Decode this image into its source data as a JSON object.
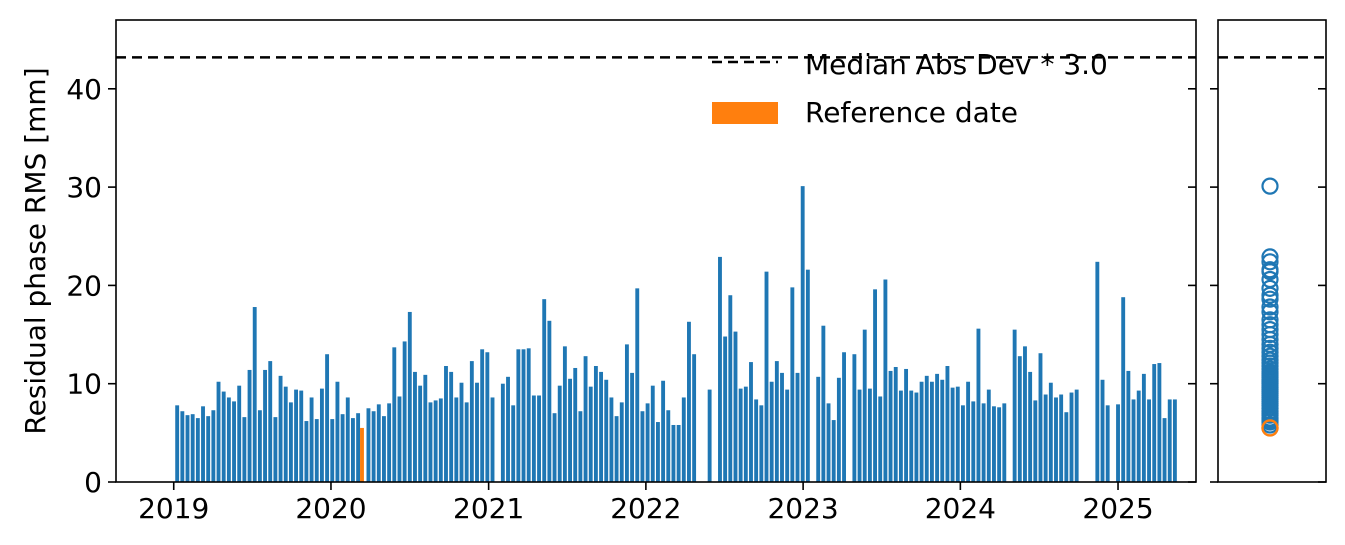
{
  "chart_data": [
    {
      "type": "bar",
      "title": "",
      "xlabel": "",
      "ylabel": "Residual phase RMS [mm]",
      "ylim": [
        0,
        47
      ],
      "xlim": [
        "2018-08-20",
        "2025-07-01"
      ],
      "grid": false,
      "legend_position": "top-right",
      "x_ticks": [
        "2019",
        "2020",
        "2021",
        "2022",
        "2023",
        "2024",
        "2025"
      ],
      "y_ticks": [
        0,
        10,
        20,
        30,
        40
      ],
      "colors": {
        "bars": "#1f77b4",
        "reference": "#ff7f0e",
        "threshold": "#000000"
      },
      "threshold": {
        "name": "Median Abs Dev * 3.0",
        "value": 43.2,
        "style": "dashed"
      },
      "reference": {
        "name": "Reference date",
        "date": "2020-03-13",
        "value": 5.5
      },
      "series": [
        {
          "values": [
            [
              "2019-01-09",
              7.8
            ],
            [
              "2019-01-21",
              7.2
            ],
            [
              "2019-02-02",
              6.8
            ],
            [
              "2019-02-14",
              6.9
            ],
            [
              "2019-02-26",
              6.5
            ],
            [
              "2019-03-10",
              7.7
            ],
            [
              "2019-03-22",
              6.7
            ],
            [
              "2019-04-03",
              7.3
            ],
            [
              "2019-04-15",
              10.2
            ],
            [
              "2019-04-27",
              9.2
            ],
            [
              "2019-05-09",
              8.6
            ],
            [
              "2019-05-21",
              8.2
            ],
            [
              "2019-06-02",
              9.8
            ],
            [
              "2019-06-14",
              6.6
            ],
            [
              "2019-06-26",
              11.4
            ],
            [
              "2019-07-08",
              17.8
            ],
            [
              "2019-07-20",
              7.3
            ],
            [
              "2019-08-01",
              11.4
            ],
            [
              "2019-08-13",
              12.3
            ],
            [
              "2019-08-25",
              6.6
            ],
            [
              "2019-09-06",
              10.8
            ],
            [
              "2019-09-18",
              9.7
            ],
            [
              "2019-09-30",
              8.1
            ],
            [
              "2019-10-12",
              9.4
            ],
            [
              "2019-10-24",
              9.3
            ],
            [
              "2019-11-05",
              6.2
            ],
            [
              "2019-11-17",
              8.6
            ],
            [
              "2019-11-29",
              6.4
            ],
            [
              "2019-12-11",
              9.5
            ],
            [
              "2019-12-23",
              13.0
            ],
            [
              "2020-01-04",
              6.4
            ],
            [
              "2020-01-16",
              10.2
            ],
            [
              "2020-01-28",
              6.9
            ],
            [
              "2020-02-09",
              8.6
            ],
            [
              "2020-02-21",
              6.5
            ],
            [
              "2020-03-04",
              7.0
            ],
            [
              "2020-03-28",
              7.5
            ],
            [
              "2020-04-09",
              7.2
            ],
            [
              "2020-04-21",
              7.9
            ],
            [
              "2020-05-03",
              6.7
            ],
            [
              "2020-05-15",
              8.0
            ],
            [
              "2020-05-27",
              13.7
            ],
            [
              "2020-06-08",
              8.7
            ],
            [
              "2020-06-20",
              14.3
            ],
            [
              "2020-07-02",
              17.3
            ],
            [
              "2020-07-14",
              11.2
            ],
            [
              "2020-07-26",
              9.8
            ],
            [
              "2020-08-07",
              10.9
            ],
            [
              "2020-08-19",
              8.1
            ],
            [
              "2020-08-31",
              8.3
            ],
            [
              "2020-09-12",
              8.5
            ],
            [
              "2020-09-24",
              11.8
            ],
            [
              "2020-10-06",
              11.2
            ],
            [
              "2020-10-18",
              8.6
            ],
            [
              "2020-10-30",
              10.1
            ],
            [
              "2020-11-11",
              8.1
            ],
            [
              "2020-11-23",
              12.3
            ],
            [
              "2020-12-05",
              10.1
            ],
            [
              "2020-12-17",
              13.5
            ],
            [
              "2020-12-29",
              13.2
            ],
            [
              "2021-01-10",
              8.6
            ],
            [
              "2021-02-03",
              10.0
            ],
            [
              "2021-02-15",
              10.7
            ],
            [
              "2021-02-27",
              7.8
            ],
            [
              "2021-03-11",
              13.5
            ],
            [
              "2021-03-23",
              13.5
            ],
            [
              "2021-04-04",
              13.6
            ],
            [
              "2021-04-16",
              8.8
            ],
            [
              "2021-04-28",
              8.8
            ],
            [
              "2021-05-10",
              18.6
            ],
            [
              "2021-05-22",
              16.4
            ],
            [
              "2021-06-03",
              7.0
            ],
            [
              "2021-06-15",
              9.8
            ],
            [
              "2021-06-27",
              13.8
            ],
            [
              "2021-07-09",
              10.5
            ],
            [
              "2021-07-21",
              11.6
            ],
            [
              "2021-08-02",
              7.2
            ],
            [
              "2021-08-14",
              12.8
            ],
            [
              "2021-08-26",
              9.7
            ],
            [
              "2021-09-07",
              11.8
            ],
            [
              "2021-09-19",
              11.2
            ],
            [
              "2021-10-01",
              10.4
            ],
            [
              "2021-10-13",
              8.6
            ],
            [
              "2021-10-25",
              6.7
            ],
            [
              "2021-11-06",
              8.1
            ],
            [
              "2021-11-18",
              14.0
            ],
            [
              "2021-11-30",
              11.1
            ],
            [
              "2021-12-12",
              19.7
            ],
            [
              "2021-12-24",
              7.2
            ],
            [
              "2022-01-05",
              8.0
            ],
            [
              "2022-01-17",
              9.8
            ],
            [
              "2022-01-29",
              6.1
            ],
            [
              "2022-02-10",
              10.3
            ],
            [
              "2022-02-22",
              7.3
            ],
            [
              "2022-03-06",
              5.8
            ],
            [
              "2022-03-18",
              5.8
            ],
            [
              "2022-03-30",
              8.6
            ],
            [
              "2022-04-11",
              16.3
            ],
            [
              "2022-04-23",
              13.0
            ],
            [
              "2022-05-29",
              9.4
            ],
            [
              "2022-06-22",
              22.9
            ],
            [
              "2022-07-04",
              14.8
            ],
            [
              "2022-07-16",
              19.0
            ],
            [
              "2022-07-28",
              15.3
            ],
            [
              "2022-08-09",
              9.5
            ],
            [
              "2022-08-21",
              9.7
            ],
            [
              "2022-09-02",
              12.2
            ],
            [
              "2022-09-14",
              8.4
            ],
            [
              "2022-09-26",
              7.8
            ],
            [
              "2022-10-08",
              21.4
            ],
            [
              "2022-10-20",
              10.2
            ],
            [
              "2022-11-01",
              12.3
            ],
            [
              "2022-11-13",
              11.1
            ],
            [
              "2022-11-25",
              9.4
            ],
            [
              "2022-12-07",
              19.8
            ],
            [
              "2022-12-19",
              11.1
            ],
            [
              "2022-12-31",
              30.1
            ],
            [
              "2023-01-12",
              21.6
            ],
            [
              "2023-02-05",
              10.7
            ],
            [
              "2023-02-17",
              15.9
            ],
            [
              "2023-03-01",
              8.0
            ],
            [
              "2023-03-13",
              6.3
            ],
            [
              "2023-03-25",
              10.6
            ],
            [
              "2023-04-06",
              13.2
            ],
            [
              "2023-04-30",
              13.0
            ],
            [
              "2023-05-12",
              9.4
            ],
            [
              "2023-05-24",
              15.5
            ],
            [
              "2023-06-05",
              9.5
            ],
            [
              "2023-06-17",
              19.6
            ],
            [
              "2023-06-29",
              8.7
            ],
            [
              "2023-07-11",
              20.6
            ],
            [
              "2023-07-23",
              11.3
            ],
            [
              "2023-08-04",
              11.7
            ],
            [
              "2023-08-16",
              9.3
            ],
            [
              "2023-08-28",
              11.5
            ],
            [
              "2023-09-09",
              9.3
            ],
            [
              "2023-09-21",
              9.1
            ],
            [
              "2023-10-03",
              10.2
            ],
            [
              "2023-10-15",
              10.8
            ],
            [
              "2023-10-27",
              10.2
            ],
            [
              "2023-11-08",
              11.0
            ],
            [
              "2023-11-20",
              10.4
            ],
            [
              "2023-12-02",
              11.8
            ],
            [
              "2023-12-14",
              9.6
            ],
            [
              "2023-12-26",
              9.7
            ],
            [
              "2024-01-07",
              7.8
            ],
            [
              "2024-01-19",
              10.2
            ],
            [
              "2024-01-31",
              8.2
            ],
            [
              "2024-02-12",
              15.6
            ],
            [
              "2024-02-24",
              8.0
            ],
            [
              "2024-03-07",
              9.4
            ],
            [
              "2024-03-19",
              7.7
            ],
            [
              "2024-03-31",
              7.6
            ],
            [
              "2024-04-12",
              8.0
            ],
            [
              "2024-05-06",
              15.5
            ],
            [
              "2024-05-18",
              12.8
            ],
            [
              "2024-05-30",
              13.8
            ],
            [
              "2024-06-11",
              11.2
            ],
            [
              "2024-06-23",
              8.3
            ],
            [
              "2024-07-05",
              13.1
            ],
            [
              "2024-07-17",
              8.9
            ],
            [
              "2024-07-29",
              10.1
            ],
            [
              "2024-08-10",
              8.6
            ],
            [
              "2024-08-22",
              8.9
            ],
            [
              "2024-09-03",
              7.1
            ],
            [
              "2024-09-15",
              9.1
            ],
            [
              "2024-09-27",
              9.4
            ],
            [
              "2024-11-14",
              22.4
            ],
            [
              "2024-11-26",
              10.4
            ],
            [
              "2024-12-08",
              7.8
            ],
            [
              "2025-01-01",
              7.9
            ],
            [
              "2025-01-13",
              18.8
            ],
            [
              "2025-01-25",
              11.3
            ],
            [
              "2025-02-06",
              8.4
            ],
            [
              "2025-02-18",
              9.3
            ],
            [
              "2025-03-02",
              11.0
            ],
            [
              "2025-03-14",
              8.4
            ],
            [
              "2025-03-26",
              12.0
            ],
            [
              "2025-04-07",
              12.1
            ],
            [
              "2025-04-19",
              6.5
            ],
            [
              "2025-05-01",
              8.4
            ],
            [
              "2025-05-13",
              8.4
            ]
          ]
        }
      ]
    },
    {
      "type": "scatter",
      "ylim": [
        0,
        47
      ],
      "share_y": true,
      "markers": "hollow circles",
      "values": [
        5.5,
        5.8,
        6.1,
        6.3,
        6.5,
        6.8,
        7.0,
        7.2,
        7.5,
        7.8,
        8.0,
        8.2,
        8.4,
        8.6,
        8.8,
        9.0,
        9.2,
        9.4,
        9.6,
        9.8,
        10.0,
        10.2,
        10.4,
        10.6,
        10.8,
        11.0,
        11.2,
        11.5,
        11.8,
        12.1,
        12.4,
        12.8,
        13.2,
        13.6,
        14.0,
        14.5,
        15.0,
        15.5,
        16.0,
        16.5,
        17.3,
        17.8,
        18.6,
        19.0,
        19.7,
        20.6,
        21.4,
        21.6,
        22.4,
        22.9,
        30.1
      ],
      "reference_value": 5.5
    }
  ]
}
